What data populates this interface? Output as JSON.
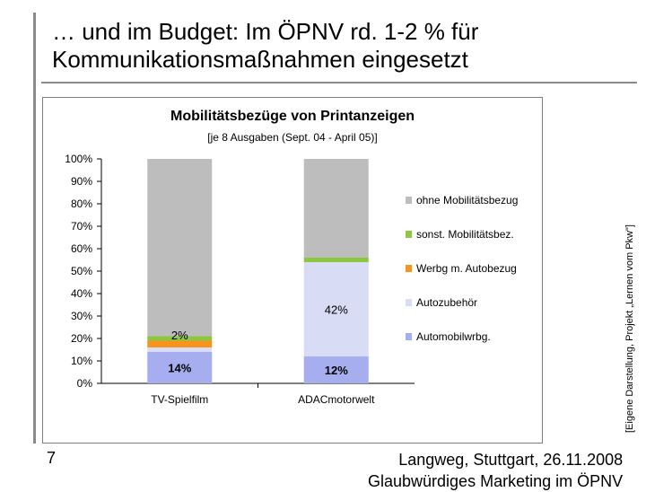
{
  "slide": {
    "title_line1": "… und im Budget: Im ÖPNV rd. 1-2 % für",
    "title_line2": "Kommunikationsmaßnahmen eingesetzt",
    "side_note": "[Eigene Darstellung, Projekt „Lernen vom Pkw\"]",
    "page_number": "7",
    "footer_line1": "Langweg, Stuttgart, 26.11.2008",
    "footer_line2": "Glaubwürdiges Marketing im ÖPNV"
  },
  "colors": {
    "ohne": "#bdbdbd",
    "sonst": "#8dc63f",
    "werbg": "#f7941d",
    "zubehoer": "#d9dcf5",
    "automobil": "#a6aef0"
  },
  "chart_data": {
    "type": "bar",
    "stacked": true,
    "title": "Mobilitätsbezüge von Printanzeigen",
    "subtitle": "[je 8 Ausgaben (Sept. 04 - April 05)]",
    "categories": [
      "TV-Spielfilm",
      "ADACmotorwelt"
    ],
    "ylim": [
      0,
      100
    ],
    "yticks": [
      "0%",
      "10%",
      "20%",
      "30%",
      "40%",
      "50%",
      "60%",
      "70%",
      "80%",
      "90%",
      "100%"
    ],
    "series": [
      {
        "name": "Automobilwrbg.",
        "color_key": "automobil",
        "values": [
          14,
          12
        ]
      },
      {
        "name": "Autozubehör",
        "color_key": "zubehoer",
        "values": [
          2,
          42
        ]
      },
      {
        "name": "Werbg m. Autobezug",
        "color_key": "werbg",
        "values": [
          3,
          0
        ]
      },
      {
        "name": "sonst. Mobilitätsbez.",
        "color_key": "sonst",
        "values": [
          2,
          2
        ]
      },
      {
        "name": "ohne Mobilitätsbezug",
        "color_key": "ohne",
        "values": [
          79,
          44
        ]
      }
    ],
    "legend_order": [
      "ohne Mobilitätsbezug",
      "sonst. Mobilitätsbez.",
      "Werbg m. Autobezug",
      "Autozubehör",
      "Automobilwrbg."
    ],
    "data_labels": [
      {
        "text": "2%",
        "category": 0,
        "series": 1,
        "bold": false
      },
      {
        "text": "14%",
        "category": 0,
        "series": 0,
        "bold": true
      },
      {
        "text": "42%",
        "category": 1,
        "series": 1,
        "bold": false
      },
      {
        "text": "12%",
        "category": 1,
        "series": 0,
        "bold": true
      }
    ],
    "legend_position": "right",
    "grid": false
  }
}
